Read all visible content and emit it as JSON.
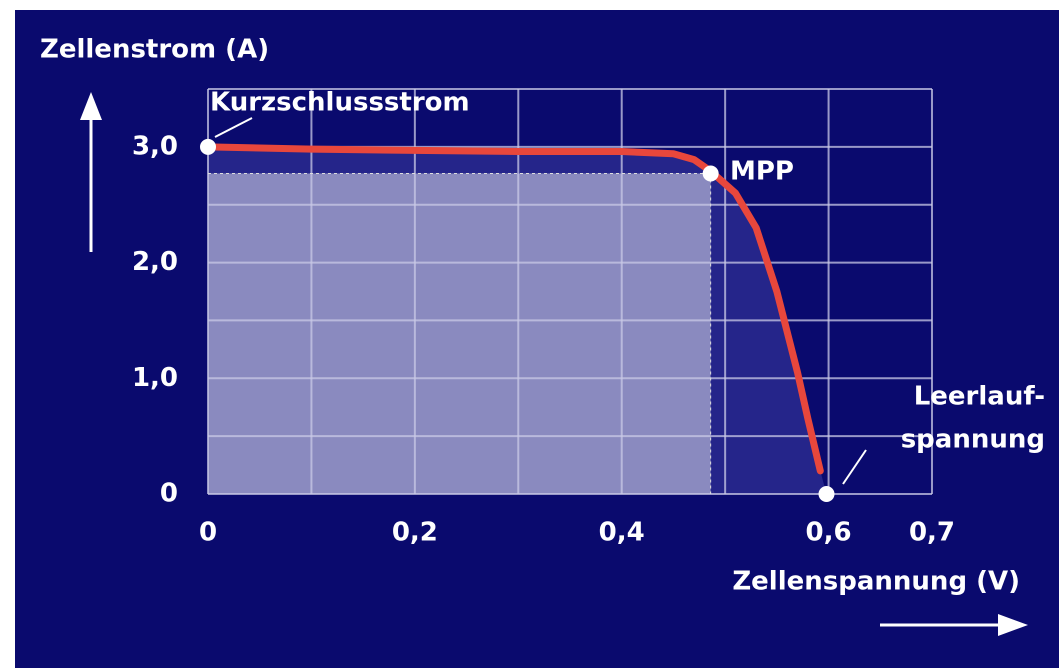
{
  "chart_data": {
    "type": "line",
    "y_label": "Zellenstrom (A)",
    "x_label": "Zellenspannung (V)",
    "x": [
      0,
      0.1,
      0.2,
      0.3,
      0.4,
      0.45,
      0.47,
      0.486,
      0.51,
      0.53,
      0.55,
      0.57,
      0.58,
      0.592
    ],
    "values": [
      3.0,
      2.98,
      2.97,
      2.96,
      2.96,
      2.94,
      2.89,
      2.79,
      2.6,
      2.3,
      1.75,
      1.05,
      0.65,
      0.2
    ],
    "color": "#e8473c",
    "xlim": [
      0,
      0.7
    ],
    "ylim": [
      0,
      3.5
    ],
    "xticks": [
      {
        "value": 0,
        "label": "0"
      },
      {
        "value": 0.2,
        "label": "0,2"
      },
      {
        "value": 0.4,
        "label": "0,4"
      },
      {
        "value": 0.6,
        "label": "0,6"
      },
      {
        "value": 0.7,
        "label": "0,7"
      }
    ],
    "yticks": [
      {
        "value": 0,
        "label": "0"
      },
      {
        "value": 1,
        "label": "1,0"
      },
      {
        "value": 2,
        "label": "2,0"
      },
      {
        "value": 3,
        "label": "3,0"
      }
    ],
    "xgrid": [
      0,
      0.1,
      0.2,
      0.3,
      0.4,
      0.5,
      0.6,
      0.7
    ],
    "ygrid": [
      0,
      0.5,
      1,
      1.5,
      2,
      2.5,
      3,
      3.5
    ],
    "grid": true,
    "points": [
      {
        "label": "Kurzschlussstrom",
        "x": 0,
        "y": 3.0
      },
      {
        "label": "MPP",
        "x": 0.486,
        "y": 2.77
      },
      {
        "label": [
          "Leerlauf-",
          "spannung"
        ],
        "x": 0.598,
        "y": 0
      }
    ]
  }
}
